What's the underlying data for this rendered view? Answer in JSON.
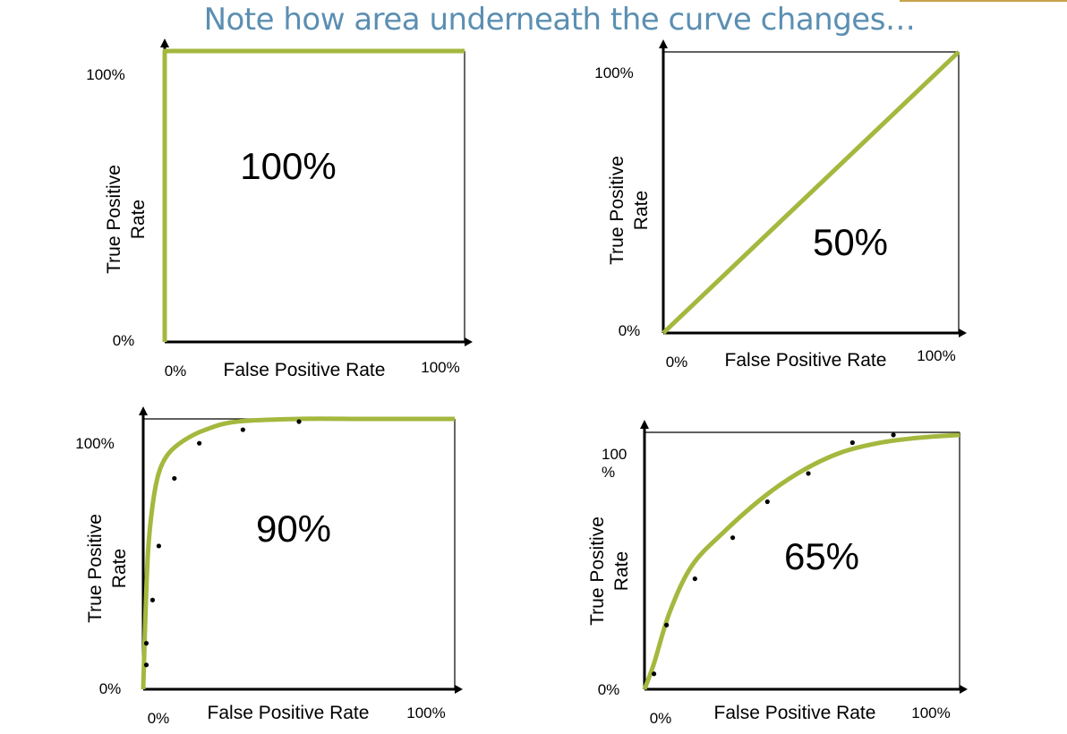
{
  "title": "Note how area underneath the curve changes…",
  "colors": {
    "curve": "#a4b83e",
    "axis": "#000000",
    "title": "#5b8fb2",
    "points": "#000000"
  },
  "chart_data": [
    {
      "type": "line",
      "title": "",
      "area_label": "100%",
      "xlabel": "False Positive Rate",
      "ylabel_lines": [
        "True Positive",
        "Rate"
      ],
      "x_ticks": [
        "0%",
        "100%"
      ],
      "y_ticks": [
        "0%",
        "100%"
      ],
      "xlim": [
        0,
        1
      ],
      "ylim": [
        0,
        1
      ],
      "series": [
        {
          "x": [
            0,
            0,
            1
          ],
          "y": [
            0,
            1,
            1
          ]
        }
      ],
      "points": []
    },
    {
      "type": "line",
      "title": "",
      "area_label": "50%",
      "xlabel": "False Positive Rate",
      "ylabel_lines": [
        "True Positive",
        "Rate"
      ],
      "x_ticks": [
        "0%",
        "100%"
      ],
      "y_ticks": [
        "0%",
        "100%"
      ],
      "xlim": [
        0,
        1
      ],
      "ylim": [
        0,
        1
      ],
      "series": [
        {
          "x": [
            0,
            1
          ],
          "y": [
            0,
            1
          ]
        }
      ],
      "points": []
    },
    {
      "type": "line",
      "title": "",
      "area_label": "90%",
      "xlabel": "False Positive Rate",
      "ylabel_lines": [
        "True Positive",
        "Rate"
      ],
      "x_ticks": [
        "0%",
        "100%"
      ],
      "y_ticks": [
        "0%",
        "100%"
      ],
      "xlim": [
        0,
        1
      ],
      "ylim": [
        0,
        1
      ],
      "series": [
        {
          "x": [
            0,
            0.005,
            0.015,
            0.03,
            0.05,
            0.08,
            0.13,
            0.2,
            0.3,
            0.5,
            0.7,
            1.0
          ],
          "y": [
            0,
            0.2,
            0.5,
            0.68,
            0.8,
            0.87,
            0.92,
            0.96,
            0.99,
            1.0,
            1.0,
            1.0
          ]
        }
      ],
      "points": [
        {
          "x": 0.01,
          "y": 0.09
        },
        {
          "x": 0.01,
          "y": 0.17
        },
        {
          "x": 0.03,
          "y": 0.33
        },
        {
          "x": 0.05,
          "y": 0.53
        },
        {
          "x": 0.1,
          "y": 0.78
        },
        {
          "x": 0.18,
          "y": 0.91
        },
        {
          "x": 0.32,
          "y": 0.96
        },
        {
          "x": 0.5,
          "y": 0.99
        }
      ]
    },
    {
      "type": "line",
      "title": "",
      "area_label": "65%",
      "xlabel": "False Positive Rate",
      "ylabel_lines": [
        "True Positive",
        "Rate"
      ],
      "x_ticks": [
        "0%",
        "100%"
      ],
      "y_ticks": [
        "0%",
        "100\n%"
      ],
      "xlim": [
        0,
        1
      ],
      "ylim": [
        0,
        1
      ],
      "series": [
        {
          "x": [
            0,
            0.03,
            0.08,
            0.15,
            0.25,
            0.38,
            0.5,
            0.62,
            0.75,
            0.88,
            1.0
          ],
          "y": [
            0,
            0.1,
            0.3,
            0.48,
            0.61,
            0.75,
            0.85,
            0.92,
            0.96,
            0.98,
            0.99
          ]
        }
      ],
      "points": [
        {
          "x": 0.03,
          "y": 0.06
        },
        {
          "x": 0.07,
          "y": 0.25
        },
        {
          "x": 0.16,
          "y": 0.43
        },
        {
          "x": 0.28,
          "y": 0.59
        },
        {
          "x": 0.39,
          "y": 0.73
        },
        {
          "x": 0.52,
          "y": 0.84
        },
        {
          "x": 0.66,
          "y": 0.96
        },
        {
          "x": 0.79,
          "y": 0.99
        }
      ]
    }
  ]
}
